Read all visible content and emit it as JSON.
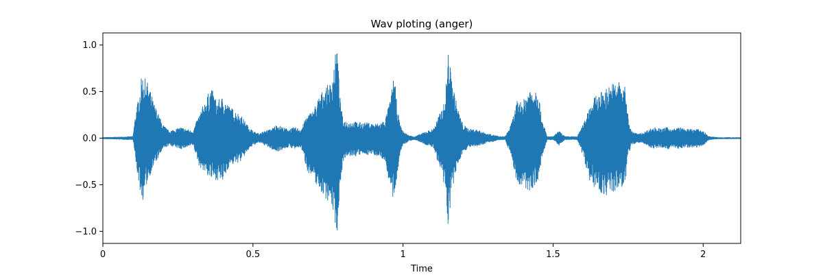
{
  "chart_data": {
    "type": "line",
    "title": "Wav ploting (anger)",
    "xlabel": "Time",
    "ylabel": "",
    "xlim": [
      0,
      2.125
    ],
    "ylim": [
      -1.13,
      1.13
    ],
    "grid": false,
    "line_color": "#1f77b4",
    "x_ticks": [
      {
        "value": 0,
        "label": "0"
      },
      {
        "value": 0.5,
        "label": "0.5"
      },
      {
        "value": 1,
        "label": "1"
      },
      {
        "value": 1.5,
        "label": "1.5"
      },
      {
        "value": 2,
        "label": "2"
      }
    ],
    "y_ticks": [
      {
        "value": 1.0,
        "label": "1.0"
      },
      {
        "value": 0.5,
        "label": "0.5"
      },
      {
        "value": 0.0,
        "label": "0.0"
      },
      {
        "value": -0.5,
        "label": "−0.5"
      },
      {
        "value": -1.0,
        "label": "−1.0"
      }
    ],
    "series": [
      {
        "envelope_upper": {
          "x": [
            0,
            0.1,
            0.11,
            0.12,
            0.13,
            0.15,
            0.17,
            0.2,
            0.22,
            0.24,
            0.26,
            0.3,
            0.32,
            0.36,
            0.38,
            0.4,
            0.42,
            0.44,
            0.46,
            0.48,
            0.5,
            0.52,
            0.54,
            0.56,
            0.58,
            0.6,
            0.62,
            0.64,
            0.66,
            0.68,
            0.7,
            0.72,
            0.74,
            0.76,
            0.78,
            0.79,
            0.8,
            0.82,
            0.84,
            0.86,
            0.88,
            0.9,
            0.92,
            0.94,
            0.96,
            0.97,
            0.98,
            0.99,
            1.0,
            1.02,
            1.04,
            1.06,
            1.08,
            1.1,
            1.12,
            1.14,
            1.15,
            1.16,
            1.18,
            1.2,
            1.22,
            1.24,
            1.26,
            1.28,
            1.3,
            1.32,
            1.34,
            1.36,
            1.38,
            1.4,
            1.42,
            1.44,
            1.45,
            1.46,
            1.48,
            1.5,
            1.52,
            1.54,
            1.56,
            1.58,
            1.6,
            1.62,
            1.64,
            1.66,
            1.68,
            1.7,
            1.72,
            1.74,
            1.75,
            1.76,
            1.78,
            1.8,
            1.82,
            1.84,
            1.86,
            1.88,
            1.9,
            1.92,
            1.94,
            1.96,
            1.98,
            2.0,
            2.02,
            2.05,
            2.1,
            2.125
          ],
          "y": [
            0.01,
            0.02,
            0.3,
            0.45,
            0.69,
            0.6,
            0.38,
            0.15,
            0.08,
            0.1,
            0.12,
            0.08,
            0.25,
            0.55,
            0.4,
            0.45,
            0.35,
            0.3,
            0.25,
            0.15,
            0.08,
            0.05,
            0.08,
            0.1,
            0.15,
            0.12,
            0.1,
            0.12,
            0.1,
            0.25,
            0.3,
            0.45,
            0.55,
            0.6,
            1.02,
            0.45,
            0.2,
            0.18,
            0.18,
            0.17,
            0.17,
            0.16,
            0.16,
            0.2,
            0.45,
            0.72,
            0.35,
            0.15,
            0.08,
            0.03,
            0.02,
            0.05,
            0.08,
            0.1,
            0.25,
            0.4,
            0.96,
            0.7,
            0.35,
            0.15,
            0.1,
            0.1,
            0.08,
            0.05,
            0.04,
            0.02,
            0.02,
            0.15,
            0.4,
            0.4,
            0.55,
            0.55,
            0.57,
            0.25,
            0.02,
            0.02,
            0.08,
            0.02,
            0.02,
            0.02,
            0.15,
            0.35,
            0.45,
            0.5,
            0.55,
            0.6,
            0.62,
            0.55,
            0.25,
            0.08,
            0.05,
            0.06,
            0.1,
            0.12,
            0.1,
            0.12,
            0.1,
            0.12,
            0.1,
            0.1,
            0.1,
            0.08,
            0.02,
            0.01,
            0.01,
            0.01
          ]
        },
        "envelope_lower": {
          "x": [
            0,
            0.1,
            0.11,
            0.12,
            0.13,
            0.15,
            0.17,
            0.2,
            0.22,
            0.24,
            0.26,
            0.3,
            0.32,
            0.36,
            0.38,
            0.4,
            0.42,
            0.44,
            0.46,
            0.48,
            0.5,
            0.52,
            0.54,
            0.56,
            0.58,
            0.6,
            0.62,
            0.64,
            0.66,
            0.68,
            0.7,
            0.72,
            0.74,
            0.76,
            0.78,
            0.79,
            0.8,
            0.82,
            0.84,
            0.86,
            0.88,
            0.9,
            0.92,
            0.94,
            0.96,
            0.97,
            0.98,
            0.99,
            1.0,
            1.02,
            1.04,
            1.06,
            1.08,
            1.1,
            1.12,
            1.14,
            1.15,
            1.16,
            1.18,
            1.2,
            1.22,
            1.24,
            1.26,
            1.28,
            1.3,
            1.32,
            1.34,
            1.36,
            1.38,
            1.4,
            1.42,
            1.44,
            1.45,
            1.46,
            1.48,
            1.5,
            1.52,
            1.54,
            1.56,
            1.58,
            1.6,
            1.62,
            1.64,
            1.66,
            1.68,
            1.7,
            1.72,
            1.74,
            1.75,
            1.76,
            1.78,
            1.8,
            1.82,
            1.84,
            1.86,
            1.88,
            1.9,
            1.92,
            1.94,
            1.96,
            1.98,
            2.0,
            2.02,
            2.05,
            2.1,
            2.125
          ],
          "y": [
            -0.01,
            -0.02,
            -0.3,
            -0.5,
            -0.7,
            -0.45,
            -0.3,
            -0.12,
            -0.08,
            -0.1,
            -0.12,
            -0.08,
            -0.3,
            -0.45,
            -0.45,
            -0.48,
            -0.3,
            -0.28,
            -0.25,
            -0.15,
            -0.08,
            -0.05,
            -0.08,
            -0.12,
            -0.15,
            -0.12,
            -0.1,
            -0.12,
            -0.1,
            -0.35,
            -0.45,
            -0.55,
            -0.65,
            -0.7,
            -1.03,
            -0.5,
            -0.25,
            -0.2,
            -0.2,
            -0.18,
            -0.18,
            -0.18,
            -0.2,
            -0.25,
            -0.6,
            -0.72,
            -0.4,
            -0.15,
            -0.08,
            -0.03,
            -0.02,
            -0.05,
            -0.08,
            -0.1,
            -0.3,
            -0.6,
            -0.96,
            -0.65,
            -0.3,
            -0.15,
            -0.1,
            -0.1,
            -0.08,
            -0.05,
            -0.04,
            -0.02,
            -0.02,
            -0.2,
            -0.5,
            -0.55,
            -0.58,
            -0.5,
            -0.5,
            -0.25,
            -0.02,
            -0.02,
            -0.08,
            -0.02,
            -0.02,
            -0.02,
            -0.2,
            -0.45,
            -0.55,
            -0.6,
            -0.62,
            -0.6,
            -0.55,
            -0.5,
            -0.2,
            -0.08,
            -0.05,
            -0.06,
            -0.1,
            -0.12,
            -0.1,
            -0.12,
            -0.1,
            -0.12,
            -0.1,
            -0.1,
            -0.1,
            -0.08,
            -0.02,
            -0.01,
            -0.01,
            -0.01
          ]
        }
      }
    ]
  }
}
